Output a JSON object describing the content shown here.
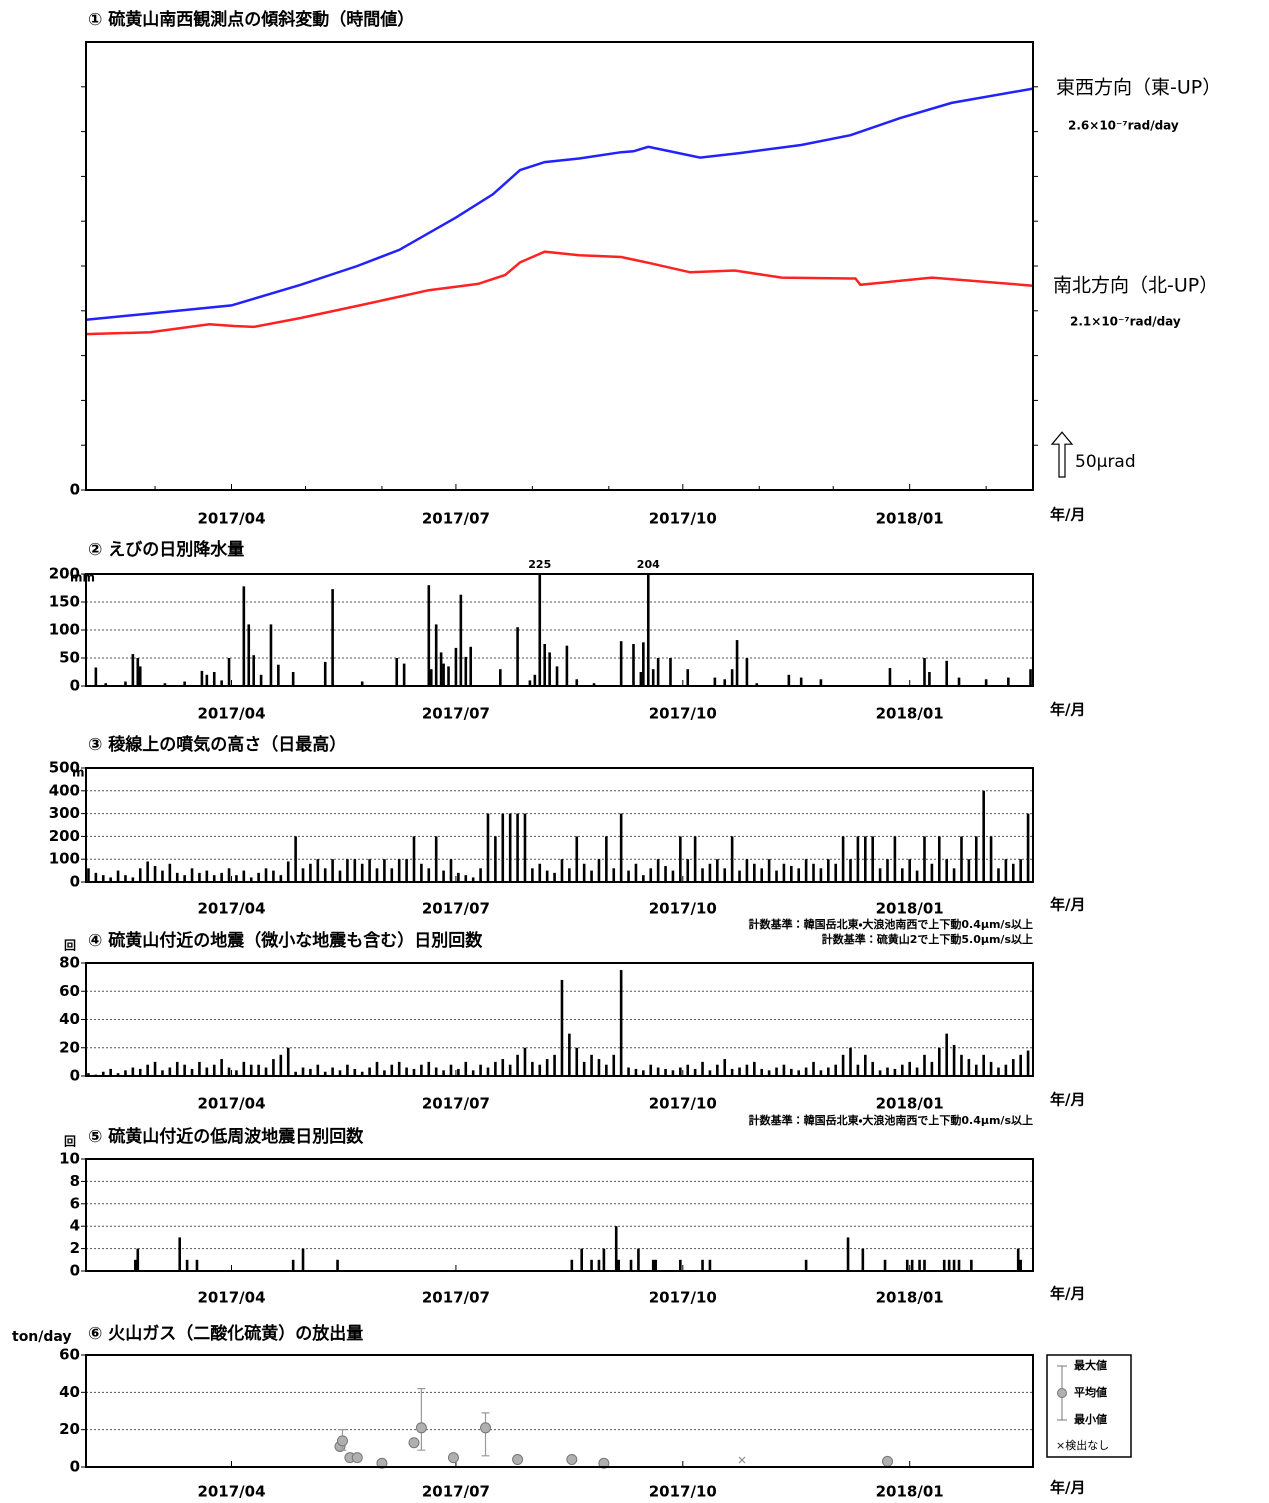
{
  "chart_data": [
    {
      "type": "line",
      "title": "① 硫黄山南西観測点の傾斜変動（時間値）",
      "xlabel": "年/月",
      "xlim": [
        0,
        384
      ],
      "xticks": [
        {
          "value": 59,
          "label": "2017/04"
        },
        {
          "value": 150,
          "label": "2017/07"
        },
        {
          "value": 242,
          "label": "2017/10"
        },
        {
          "value": 334,
          "label": "2018/01"
        }
      ],
      "xminorticks": [
        28,
        89,
        120,
        181,
        212,
        273,
        303,
        365
      ],
      "ylim": [
        0,
        500
      ],
      "yticks": [
        0
      ],
      "yminorticks": [
        50,
        100,
        150,
        200,
        250,
        300,
        350,
        400,
        450
      ],
      "series": [
        {
          "name": "東西方向（東-UP）",
          "rate": "2.6×10⁻⁷rad/day",
          "color": "#2222ff",
          "x": [
            0,
            26,
            59,
            87,
            110,
            127,
            150,
            165,
            176,
            186,
            200,
            217,
            222,
            228,
            235,
            249,
            265,
            290,
            310,
            330,
            351,
            384
          ],
          "values": [
            190,
            197,
            206,
            229,
            250,
            268,
            304,
            330,
            357,
            366,
            370,
            377,
            378,
            383,
            379,
            371,
            376,
            385,
            396,
            415,
            432,
            448
          ]
        },
        {
          "name": "南北方向（北-UP）",
          "rate": "2.1×10⁻⁷rad/day",
          "color": "#ff2222",
          "x": [
            0,
            26,
            50,
            60,
            68,
            87,
            111,
            139,
            159,
            170,
            176,
            186,
            200,
            217,
            229,
            245,
            263,
            282,
            310,
            312,
            314,
            343,
            384
          ],
          "values": [
            174,
            176,
            185,
            183,
            182,
            192,
            206,
            223,
            230,
            240,
            254,
            266,
            262,
            260,
            253,
            243,
            245,
            237,
            236,
            236,
            229,
            237,
            228
          ]
        }
      ],
      "scale_bar": {
        "value": 50,
        "label": "50μrad"
      }
    },
    {
      "type": "bar",
      "title": "② えびの日別降水量",
      "yunit": "mm",
      "xlabel": "年/月",
      "color": "#000000",
      "grid": true,
      "label_overflow": true,
      "xlim": [
        0,
        384
      ],
      "xticks": [
        {
          "value": 59,
          "label": "2017/04"
        },
        {
          "value": 150,
          "label": "2017/07"
        },
        {
          "value": 242,
          "label": "2017/10"
        },
        {
          "value": 334,
          "label": "2018/01"
        }
      ],
      "ylim": [
        0,
        200
      ],
      "yticks": [
        0,
        50,
        100,
        150,
        200
      ],
      "x": [
        4,
        8,
        16,
        19,
        21,
        22,
        32,
        40,
        47,
        49,
        52,
        55,
        58,
        64,
        66,
        68,
        71,
        75,
        78,
        84,
        97,
        100,
        112,
        126,
        129,
        139,
        140,
        142,
        144,
        145,
        147,
        150,
        152,
        154,
        156,
        168,
        175,
        180,
        182,
        184,
        186,
        188,
        191,
        195,
        199,
        206,
        217,
        222,
        225,
        226,
        228,
        230,
        232,
        237,
        244,
        255,
        259,
        262,
        264,
        268,
        272,
        285,
        290,
        298,
        326,
        340,
        342,
        349,
        354,
        365,
        374,
        383
      ],
      "values": [
        33,
        5,
        8,
        57,
        50,
        35,
        5,
        8,
        27,
        20,
        25,
        10,
        50,
        178,
        110,
        55,
        20,
        110,
        38,
        25,
        43,
        173,
        8,
        50,
        40,
        180,
        30,
        110,
        60,
        40,
        35,
        68,
        163,
        52,
        70,
        30,
        105,
        10,
        20,
        225,
        75,
        60,
        35,
        72,
        12,
        5,
        80,
        75,
        25,
        78,
        204,
        30,
        50,
        50,
        30,
        15,
        12,
        30,
        82,
        50,
        5,
        20,
        15,
        12,
        32,
        50,
        25,
        45,
        15,
        12,
        15,
        30
      ]
    },
    {
      "type": "bar",
      "title": "③ 稜線上の噴気の高さ（日最高）",
      "yunit": "m",
      "xlabel": "年/月",
      "color": "#000000",
      "grid": true,
      "xlim": [
        0,
        384
      ],
      "xticks": [
        {
          "value": 59,
          "label": "2017/04"
        },
        {
          "value": 150,
          "label": "2017/07"
        },
        {
          "value": 242,
          "label": "2017/10"
        },
        {
          "value": 334,
          "label": "2018/01"
        }
      ],
      "ylim": [
        0,
        500
      ],
      "yticks": [
        0,
        100,
        200,
        300,
        400,
        500
      ],
      "x": [
        1,
        4,
        7,
        10,
        13,
        16,
        19,
        22,
        25,
        28,
        31,
        34,
        37,
        40,
        43,
        46,
        49,
        52,
        55,
        58,
        61,
        64,
        67,
        70,
        73,
        76,
        79,
        82,
        85,
        88,
        91,
        94,
        97,
        100,
        103,
        106,
        109,
        112,
        115,
        118,
        121,
        124,
        127,
        130,
        133,
        136,
        139,
        142,
        145,
        148,
        151,
        154,
        157,
        160,
        163,
        166,
        169,
        172,
        175,
        178,
        181,
        184,
        187,
        190,
        193,
        196,
        199,
        202,
        205,
        208,
        211,
        214,
        217,
        220,
        223,
        226,
        229,
        232,
        235,
        238,
        241,
        244,
        247,
        250,
        253,
        256,
        259,
        262,
        265,
        268,
        271,
        274,
        277,
        280,
        283,
        286,
        289,
        292,
        295,
        298,
        301,
        304,
        307,
        310,
        313,
        316,
        319,
        322,
        325,
        328,
        331,
        334,
        337,
        340,
        343,
        346,
        349,
        352,
        355,
        358,
        361,
        364,
        367,
        370,
        373,
        376,
        379,
        382
      ],
      "values": [
        60,
        40,
        30,
        20,
        50,
        30,
        20,
        60,
        90,
        70,
        50,
        80,
        40,
        30,
        60,
        40,
        50,
        30,
        40,
        60,
        30,
        50,
        20,
        40,
        60,
        50,
        30,
        90,
        200,
        60,
        80,
        100,
        60,
        100,
        50,
        100,
        100,
        80,
        100,
        60,
        100,
        60,
        100,
        100,
        200,
        80,
        60,
        200,
        50,
        100,
        40,
        30,
        20,
        60,
        300,
        200,
        300,
        300,
        300,
        300,
        60,
        80,
        50,
        40,
        100,
        60,
        200,
        80,
        50,
        100,
        200,
        60,
        300,
        50,
        80,
        30,
        60,
        100,
        70,
        50,
        200,
        100,
        200,
        60,
        80,
        100,
        60,
        200,
        50,
        100,
        80,
        60,
        100,
        50,
        80,
        70,
        60,
        100,
        80,
        60,
        100,
        80,
        200,
        100,
        200,
        200,
        200,
        60,
        100,
        200,
        60,
        100,
        50,
        200,
        80,
        200,
        100,
        60,
        200,
        100,
        200,
        400,
        200,
        60,
        100,
        80,
        100,
        300
      ]
    },
    {
      "type": "bar",
      "title": "④ 硫黄山付近の地震（微小な地震も含む）日別回数",
      "yunit": "回",
      "xlabel": "年/月",
      "color": "#000000",
      "grid": true,
      "notes": [
        "計数基準：韓国岳北東・大浪池南西で上下動0.4μm/s以上",
        "計数基準：硫黄山2で上下動5.0μm/s以上"
      ],
      "xlim": [
        0,
        384
      ],
      "xticks": [
        {
          "value": 59,
          "label": "2017/04"
        },
        {
          "value": 150,
          "label": "2017/07"
        },
        {
          "value": 242,
          "label": "2017/10"
        },
        {
          "value": 334,
          "label": "2018/01"
        }
      ],
      "ylim": [
        0,
        80
      ],
      "yticks": [
        0,
        20,
        40,
        60,
        80
      ],
      "x": [
        1,
        4,
        7,
        10,
        13,
        16,
        19,
        22,
        25,
        28,
        31,
        34,
        37,
        40,
        43,
        46,
        49,
        52,
        55,
        58,
        61,
        64,
        67,
        70,
        73,
        76,
        79,
        82,
        85,
        88,
        91,
        94,
        97,
        100,
        103,
        106,
        109,
        112,
        115,
        118,
        121,
        124,
        127,
        130,
        133,
        136,
        139,
        142,
        145,
        148,
        151,
        154,
        157,
        160,
        163,
        166,
        169,
        172,
        175,
        178,
        181,
        184,
        187,
        190,
        193,
        196,
        199,
        202,
        205,
        208,
        211,
        214,
        217,
        220,
        223,
        226,
        229,
        232,
        235,
        238,
        241,
        244,
        247,
        250,
        253,
        256,
        259,
        262,
        265,
        268,
        271,
        274,
        277,
        280,
        283,
        286,
        289,
        292,
        295,
        298,
        301,
        304,
        307,
        310,
        313,
        316,
        319,
        322,
        325,
        328,
        331,
        334,
        337,
        340,
        343,
        346,
        349,
        352,
        355,
        358,
        361,
        364,
        367,
        370,
        373,
        376,
        379,
        382
      ],
      "values": [
        2,
        1,
        3,
        5,
        2,
        4,
        6,
        5,
        8,
        10,
        4,
        6,
        10,
        8,
        5,
        10,
        6,
        8,
        12,
        6,
        4,
        10,
        8,
        8,
        6,
        12,
        15,
        20,
        3,
        6,
        5,
        8,
        3,
        6,
        4,
        8,
        5,
        3,
        6,
        10,
        4,
        8,
        10,
        6,
        5,
        8,
        10,
        6,
        4,
        8,
        5,
        10,
        4,
        8,
        6,
        10,
        12,
        8,
        15,
        20,
        10,
        8,
        12,
        15,
        68,
        30,
        20,
        10,
        15,
        12,
        8,
        15,
        75,
        6,
        5,
        4,
        8,
        6,
        5,
        4,
        6,
        8,
        5,
        10,
        4,
        8,
        12,
        5,
        6,
        8,
        10,
        5,
        4,
        6,
        8,
        5,
        4,
        6,
        10,
        4,
        6,
        8,
        15,
        20,
        8,
        15,
        10,
        4,
        6,
        5,
        8,
        10,
        6,
        15,
        10,
        20,
        30,
        22,
        15,
        12,
        8,
        15,
        10,
        6,
        8,
        12,
        15,
        18
      ]
    },
    {
      "type": "bar",
      "title": "⑤ 硫黄山付近の低周波地震日別回数",
      "yunit": "回",
      "xlabel": "年/月",
      "color": "#000000",
      "grid": true,
      "notes": [
        "計数基準：韓国岳北東・大浪池南西で上下動0.4μm/s以上"
      ],
      "xlim": [
        0,
        384
      ],
      "xticks": [
        {
          "value": 59,
          "label": "2017/04"
        },
        {
          "value": 150,
          "label": "2017/07"
        },
        {
          "value": 242,
          "label": "2017/10"
        },
        {
          "value": 334,
          "label": "2018/01"
        }
      ],
      "ylim": [
        0,
        10
      ],
      "yticks": [
        0,
        2,
        4,
        6,
        8,
        10
      ],
      "x": [
        20,
        21,
        38,
        41,
        45,
        84,
        88,
        102,
        197,
        201,
        205,
        208,
        210,
        215,
        216,
        221,
        224,
        230,
        231,
        241,
        250,
        253,
        292,
        309,
        315,
        324,
        333,
        335,
        338,
        340,
        348,
        350,
        352,
        354,
        359,
        378,
        379
      ],
      "values": [
        1,
        2,
        3,
        1,
        1,
        1,
        2,
        1,
        1,
        2,
        1,
        1,
        2,
        4,
        1,
        1,
        2,
        1,
        1,
        1,
        1,
        1,
        1,
        3,
        2,
        1,
        1,
        1,
        1,
        1,
        1,
        1,
        1,
        1,
        1,
        2,
        1
      ]
    },
    {
      "type": "scatter",
      "title": "⑥ 火山ガス（二酸化硫黄）の放出量",
      "yunit": "ton/day",
      "xlabel": "年/月",
      "color": "#b0b0b0",
      "grid": true,
      "xlim": [
        0,
        384
      ],
      "xticks": [
        {
          "value": 59,
          "label": "2017/04"
        },
        {
          "value": 150,
          "label": "2017/07"
        },
        {
          "value": 242,
          "label": "2017/10"
        },
        {
          "value": 334,
          "label": "2018/01"
        }
      ],
      "ylim": [
        0,
        60
      ],
      "yticks": [
        0,
        20,
        40,
        60
      ],
      "x": [
        103,
        104,
        107,
        110,
        120,
        133,
        136,
        149,
        162,
        175,
        197,
        210,
        325
      ],
      "values": [
        11,
        14,
        5,
        5,
        2,
        13,
        21,
        5,
        21,
        4,
        4,
        2,
        3
      ],
      "min": [
        null,
        9,
        null,
        null,
        null,
        null,
        9,
        null,
        6,
        null,
        null,
        null,
        null
      ],
      "max": [
        null,
        20,
        null,
        null,
        null,
        null,
        42,
        null,
        29,
        null,
        null,
        null,
        null
      ],
      "not_detected_x": [
        266
      ],
      "legend": [
        "最大値",
        "平均値",
        "最小値",
        "×検出なし"
      ]
    }
  ]
}
